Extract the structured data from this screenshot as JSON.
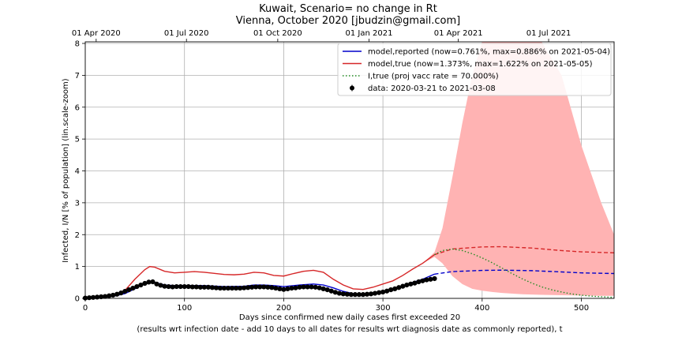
{
  "title": {
    "line1": "Kuwait, Scenario= no change in Rt",
    "line2": "Vienna, October 2020 [jbudzin@gmail.com]"
  },
  "chart_data": {
    "type": "line",
    "xlabel": "Days since confirmed new daily cases first exceeded 20",
    "xlabel2": "(results wrt infection date - add 10 days to all dates for results wrt diagnosis date as commonly reported), t",
    "ylabel": "Infected, I/N [% of population] (lin.scale-zoom)",
    "xlim": [
      0,
      533
    ],
    "ylim": [
      0,
      8.05
    ],
    "x_ticks": [
      0,
      100,
      200,
      300,
      400,
      500
    ],
    "y_ticks": [
      0,
      1,
      2,
      3,
      4,
      5,
      6,
      7,
      8
    ],
    "top_axis": {
      "ticks": [
        {
          "x": 11,
          "label": "01 Apr 2020"
        },
        {
          "x": 102,
          "label": "01 Jul 2020"
        },
        {
          "x": 194,
          "label": "01 Oct 2020"
        },
        {
          "x": 286,
          "label": "01 Jan 2021"
        },
        {
          "x": 376,
          "label": "01 Apr 2021"
        },
        {
          "x": 467,
          "label": "01 Jul 2021"
        }
      ]
    },
    "grid": true,
    "legend_position": "top-right",
    "legend": [
      {
        "label": "model,reported (now=0.761%, max=0.886% on 2021-05-04)",
        "color": "#0000cc",
        "style": "solid"
      },
      {
        "label": "model,true (now=1.373%, max=1.622% on 2021-05-05)",
        "color": "#d62728",
        "style": "solid"
      },
      {
        "label": "I,true (proj vacc rate = 70.000%)",
        "color": "#228b22",
        "style": "dotted"
      },
      {
        "label": "data: 2020-03-21 to 2021-03-08",
        "color": "#000000",
        "style": "marker"
      }
    ],
    "now_x": 352,
    "series": [
      {
        "name": "model,reported",
        "color": "#0000cc",
        "x": [
          0,
          20,
          30,
          40,
          50,
          60,
          65,
          70,
          80,
          90,
          100,
          120,
          140,
          160,
          170,
          180,
          190,
          200,
          210,
          220,
          230,
          240,
          250,
          260,
          270,
          280,
          290,
          300,
          310,
          320,
          330,
          340,
          352,
          370,
          400,
          420,
          450,
          480,
          500,
          533
        ],
        "y": [
          0,
          0.04,
          0.08,
          0.15,
          0.3,
          0.48,
          0.54,
          0.5,
          0.42,
          0.4,
          0.4,
          0.4,
          0.37,
          0.38,
          0.42,
          0.42,
          0.4,
          0.37,
          0.4,
          0.43,
          0.45,
          0.42,
          0.33,
          0.22,
          0.15,
          0.13,
          0.14,
          0.2,
          0.3,
          0.4,
          0.5,
          0.6,
          0.761,
          0.84,
          0.878,
          0.886,
          0.87,
          0.83,
          0.8,
          0.78
        ]
      },
      {
        "name": "model,true",
        "color": "#d62728",
        "x": [
          0,
          20,
          30,
          40,
          50,
          60,
          65,
          70,
          80,
          90,
          100,
          110,
          120,
          140,
          150,
          160,
          170,
          180,
          190,
          200,
          210,
          220,
          230,
          240,
          250,
          260,
          270,
          280,
          290,
          300,
          310,
          320,
          330,
          340,
          352,
          370,
          400,
          420,
          450,
          480,
          500,
          533
        ],
        "y": [
          0,
          0.05,
          0.1,
          0.25,
          0.6,
          0.9,
          1.0,
          0.98,
          0.85,
          0.8,
          0.82,
          0.84,
          0.82,
          0.75,
          0.74,
          0.76,
          0.82,
          0.8,
          0.72,
          0.7,
          0.78,
          0.85,
          0.88,
          0.82,
          0.6,
          0.42,
          0.3,
          0.28,
          0.35,
          0.45,
          0.55,
          0.72,
          0.92,
          1.1,
          1.373,
          1.55,
          1.615,
          1.622,
          1.58,
          1.5,
          1.46,
          1.43
        ]
      },
      {
        "name": "I,true (proj vacc rate)",
        "color": "#228b22",
        "x": [
          352,
          360,
          370,
          380,
          390,
          400,
          410,
          420,
          430,
          440,
          450,
          460,
          470,
          480,
          490,
          500,
          510,
          520,
          533
        ],
        "y": [
          1.373,
          1.5,
          1.55,
          1.5,
          1.4,
          1.27,
          1.12,
          0.95,
          0.78,
          0.62,
          0.48,
          0.36,
          0.27,
          0.2,
          0.14,
          0.1,
          0.07,
          0.05,
          0.03
        ]
      }
    ],
    "band": {
      "color": "#ffb3b3",
      "x": [
        340,
        352,
        360,
        370,
        380,
        390,
        400,
        410,
        420,
        440,
        460,
        480,
        500,
        520,
        533
      ],
      "lo": [
        1.1,
        1.3,
        1.1,
        0.7,
        0.45,
        0.3,
        0.24,
        0.2,
        0.17,
        0.13,
        0.11,
        0.1,
        0.09,
        0.08,
        0.08
      ],
      "hi": [
        1.1,
        1.45,
        2.2,
        3.8,
        5.5,
        7.0,
        8.05,
        8.05,
        8.05,
        8.05,
        8.05,
        7.0,
        4.8,
        3.0,
        2.0
      ]
    },
    "data_points": {
      "x": [
        0,
        4,
        8,
        12,
        16,
        20,
        24,
        28,
        32,
        36,
        40,
        44,
        48,
        52,
        56,
        60,
        64,
        68,
        72,
        76,
        80,
        84,
        88,
        92,
        96,
        100,
        104,
        108,
        112,
        116,
        120,
        124,
        128,
        132,
        136,
        140,
        144,
        148,
        152,
        156,
        160,
        164,
        168,
        172,
        176,
        180,
        184,
        188,
        192,
        196,
        200,
        204,
        208,
        212,
        216,
        220,
        224,
        228,
        232,
        236,
        240,
        244,
        248,
        252,
        256,
        260,
        264,
        268,
        272,
        276,
        280,
        284,
        288,
        292,
        296,
        300,
        304,
        308,
        312,
        316,
        320,
        324,
        328,
        332,
        336,
        340,
        344,
        348,
        352
      ],
      "y": [
        0.01,
        0.02,
        0.03,
        0.04,
        0.05,
        0.06,
        0.08,
        0.1,
        0.13,
        0.17,
        0.22,
        0.27,
        0.32,
        0.37,
        0.42,
        0.47,
        0.51,
        0.52,
        0.45,
        0.41,
        0.38,
        0.37,
        0.36,
        0.37,
        0.37,
        0.37,
        0.37,
        0.36,
        0.36,
        0.35,
        0.35,
        0.35,
        0.34,
        0.33,
        0.32,
        0.32,
        0.32,
        0.32,
        0.32,
        0.32,
        0.33,
        0.34,
        0.35,
        0.36,
        0.36,
        0.36,
        0.35,
        0.34,
        0.32,
        0.3,
        0.28,
        0.3,
        0.32,
        0.33,
        0.35,
        0.36,
        0.36,
        0.36,
        0.35,
        0.33,
        0.3,
        0.27,
        0.23,
        0.19,
        0.16,
        0.14,
        0.13,
        0.12,
        0.12,
        0.12,
        0.12,
        0.13,
        0.14,
        0.16,
        0.18,
        0.2,
        0.23,
        0.27,
        0.3,
        0.34,
        0.38,
        0.42,
        0.45,
        0.48,
        0.52,
        0.55,
        0.58,
        0.6,
        0.62
      ]
    }
  }
}
